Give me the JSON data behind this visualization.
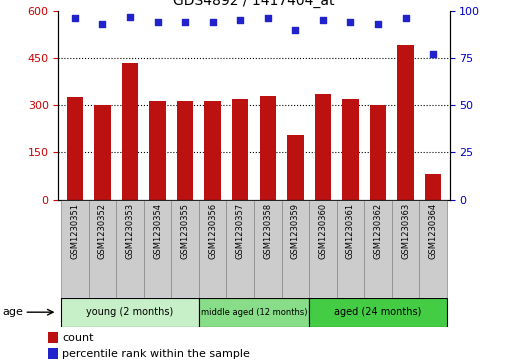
{
  "title": "GDS4892 / 1417404_at",
  "samples": [
    "GSM1230351",
    "GSM1230352",
    "GSM1230353",
    "GSM1230354",
    "GSM1230355",
    "GSM1230356",
    "GSM1230357",
    "GSM1230358",
    "GSM1230359",
    "GSM1230360",
    "GSM1230361",
    "GSM1230362",
    "GSM1230363",
    "GSM1230364"
  ],
  "counts": [
    325,
    300,
    435,
    312,
    312,
    315,
    320,
    328,
    205,
    335,
    320,
    300,
    490,
    80
  ],
  "percentile_ranks": [
    96,
    93,
    97,
    94,
    94,
    94,
    95,
    96,
    90,
    95,
    94,
    93,
    96,
    77
  ],
  "bar_color": "#bb1111",
  "dot_color": "#2222cc",
  "ylim_left": [
    0,
    600
  ],
  "ylim_right": [
    0,
    100
  ],
  "yticks_left": [
    0,
    150,
    300,
    450,
    600
  ],
  "yticks_right": [
    0,
    25,
    50,
    75,
    100
  ],
  "groups": [
    {
      "label": "young (2 months)",
      "start": 0,
      "end": 5,
      "color": "#c8f0c8"
    },
    {
      "label": "middle aged (12 months)",
      "start": 5,
      "end": 9,
      "color": "#88dd88"
    },
    {
      "label": "aged (24 months)",
      "start": 9,
      "end": 14,
      "color": "#44cc44"
    }
  ],
  "age_label": "age",
  "legend_count_label": "count",
  "legend_pct_label": "percentile rank within the sample",
  "tick_label_color_left": "#cc0000",
  "tick_label_color_right": "#0000cc",
  "label_bg_color": "#cccccc",
  "label_border_color": "#888888"
}
